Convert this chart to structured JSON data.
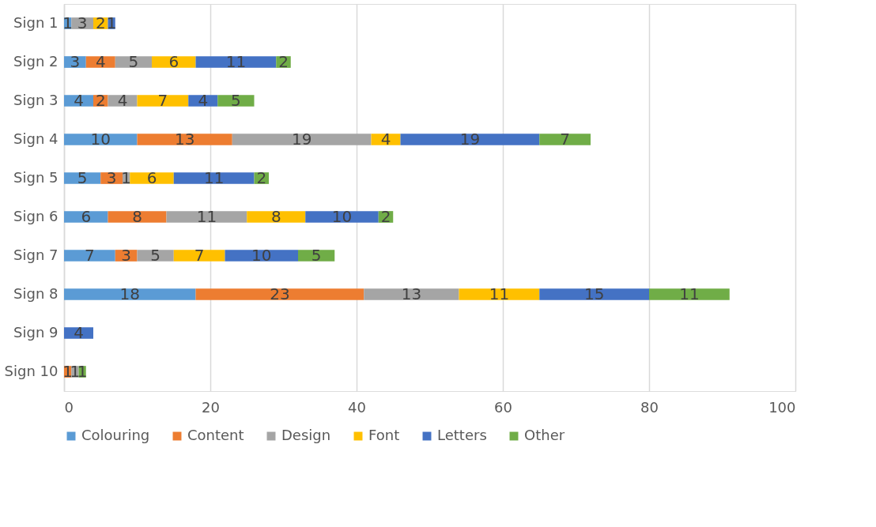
{
  "chart_data": {
    "type": "bar",
    "orientation": "horizontal",
    "stacked": true,
    "data_labels": true,
    "grid": "x",
    "legend": "bottom",
    "categories": [
      "Sign 1",
      "Sign 2",
      "Sign 3",
      "Sign 4",
      "Sign 5",
      "Sign 6",
      "Sign 7",
      "Sign 8",
      "Sign 9",
      "Sign 10"
    ],
    "xlim": [
      0,
      100
    ],
    "xticks": [
      0,
      20,
      40,
      60,
      80,
      100
    ],
    "series": [
      {
        "name": "Colouring",
        "color": "#5b9bd5",
        "values": [
          1,
          3,
          4,
          10,
          5,
          6,
          7,
          18,
          null,
          null
        ]
      },
      {
        "name": "Content",
        "color": "#ed7d31",
        "values": [
          null,
          4,
          2,
          13,
          3,
          8,
          3,
          23,
          null,
          1
        ]
      },
      {
        "name": "Design",
        "color": "#a5a5a5",
        "values": [
          3,
          5,
          4,
          19,
          1,
          11,
          5,
          13,
          null,
          1
        ]
      },
      {
        "name": "Font",
        "color": "#ffc000",
        "values": [
          2,
          6,
          7,
          4,
          6,
          8,
          7,
          11,
          null,
          null
        ]
      },
      {
        "name": "Letters",
        "color": "#4472c4",
        "values": [
          1,
          11,
          4,
          19,
          11,
          10,
          10,
          15,
          4,
          null
        ]
      },
      {
        "name": "Other",
        "color": "#70ad47",
        "values": [
          null,
          2,
          5,
          7,
          2,
          2,
          5,
          11,
          null,
          1
        ]
      }
    ]
  }
}
